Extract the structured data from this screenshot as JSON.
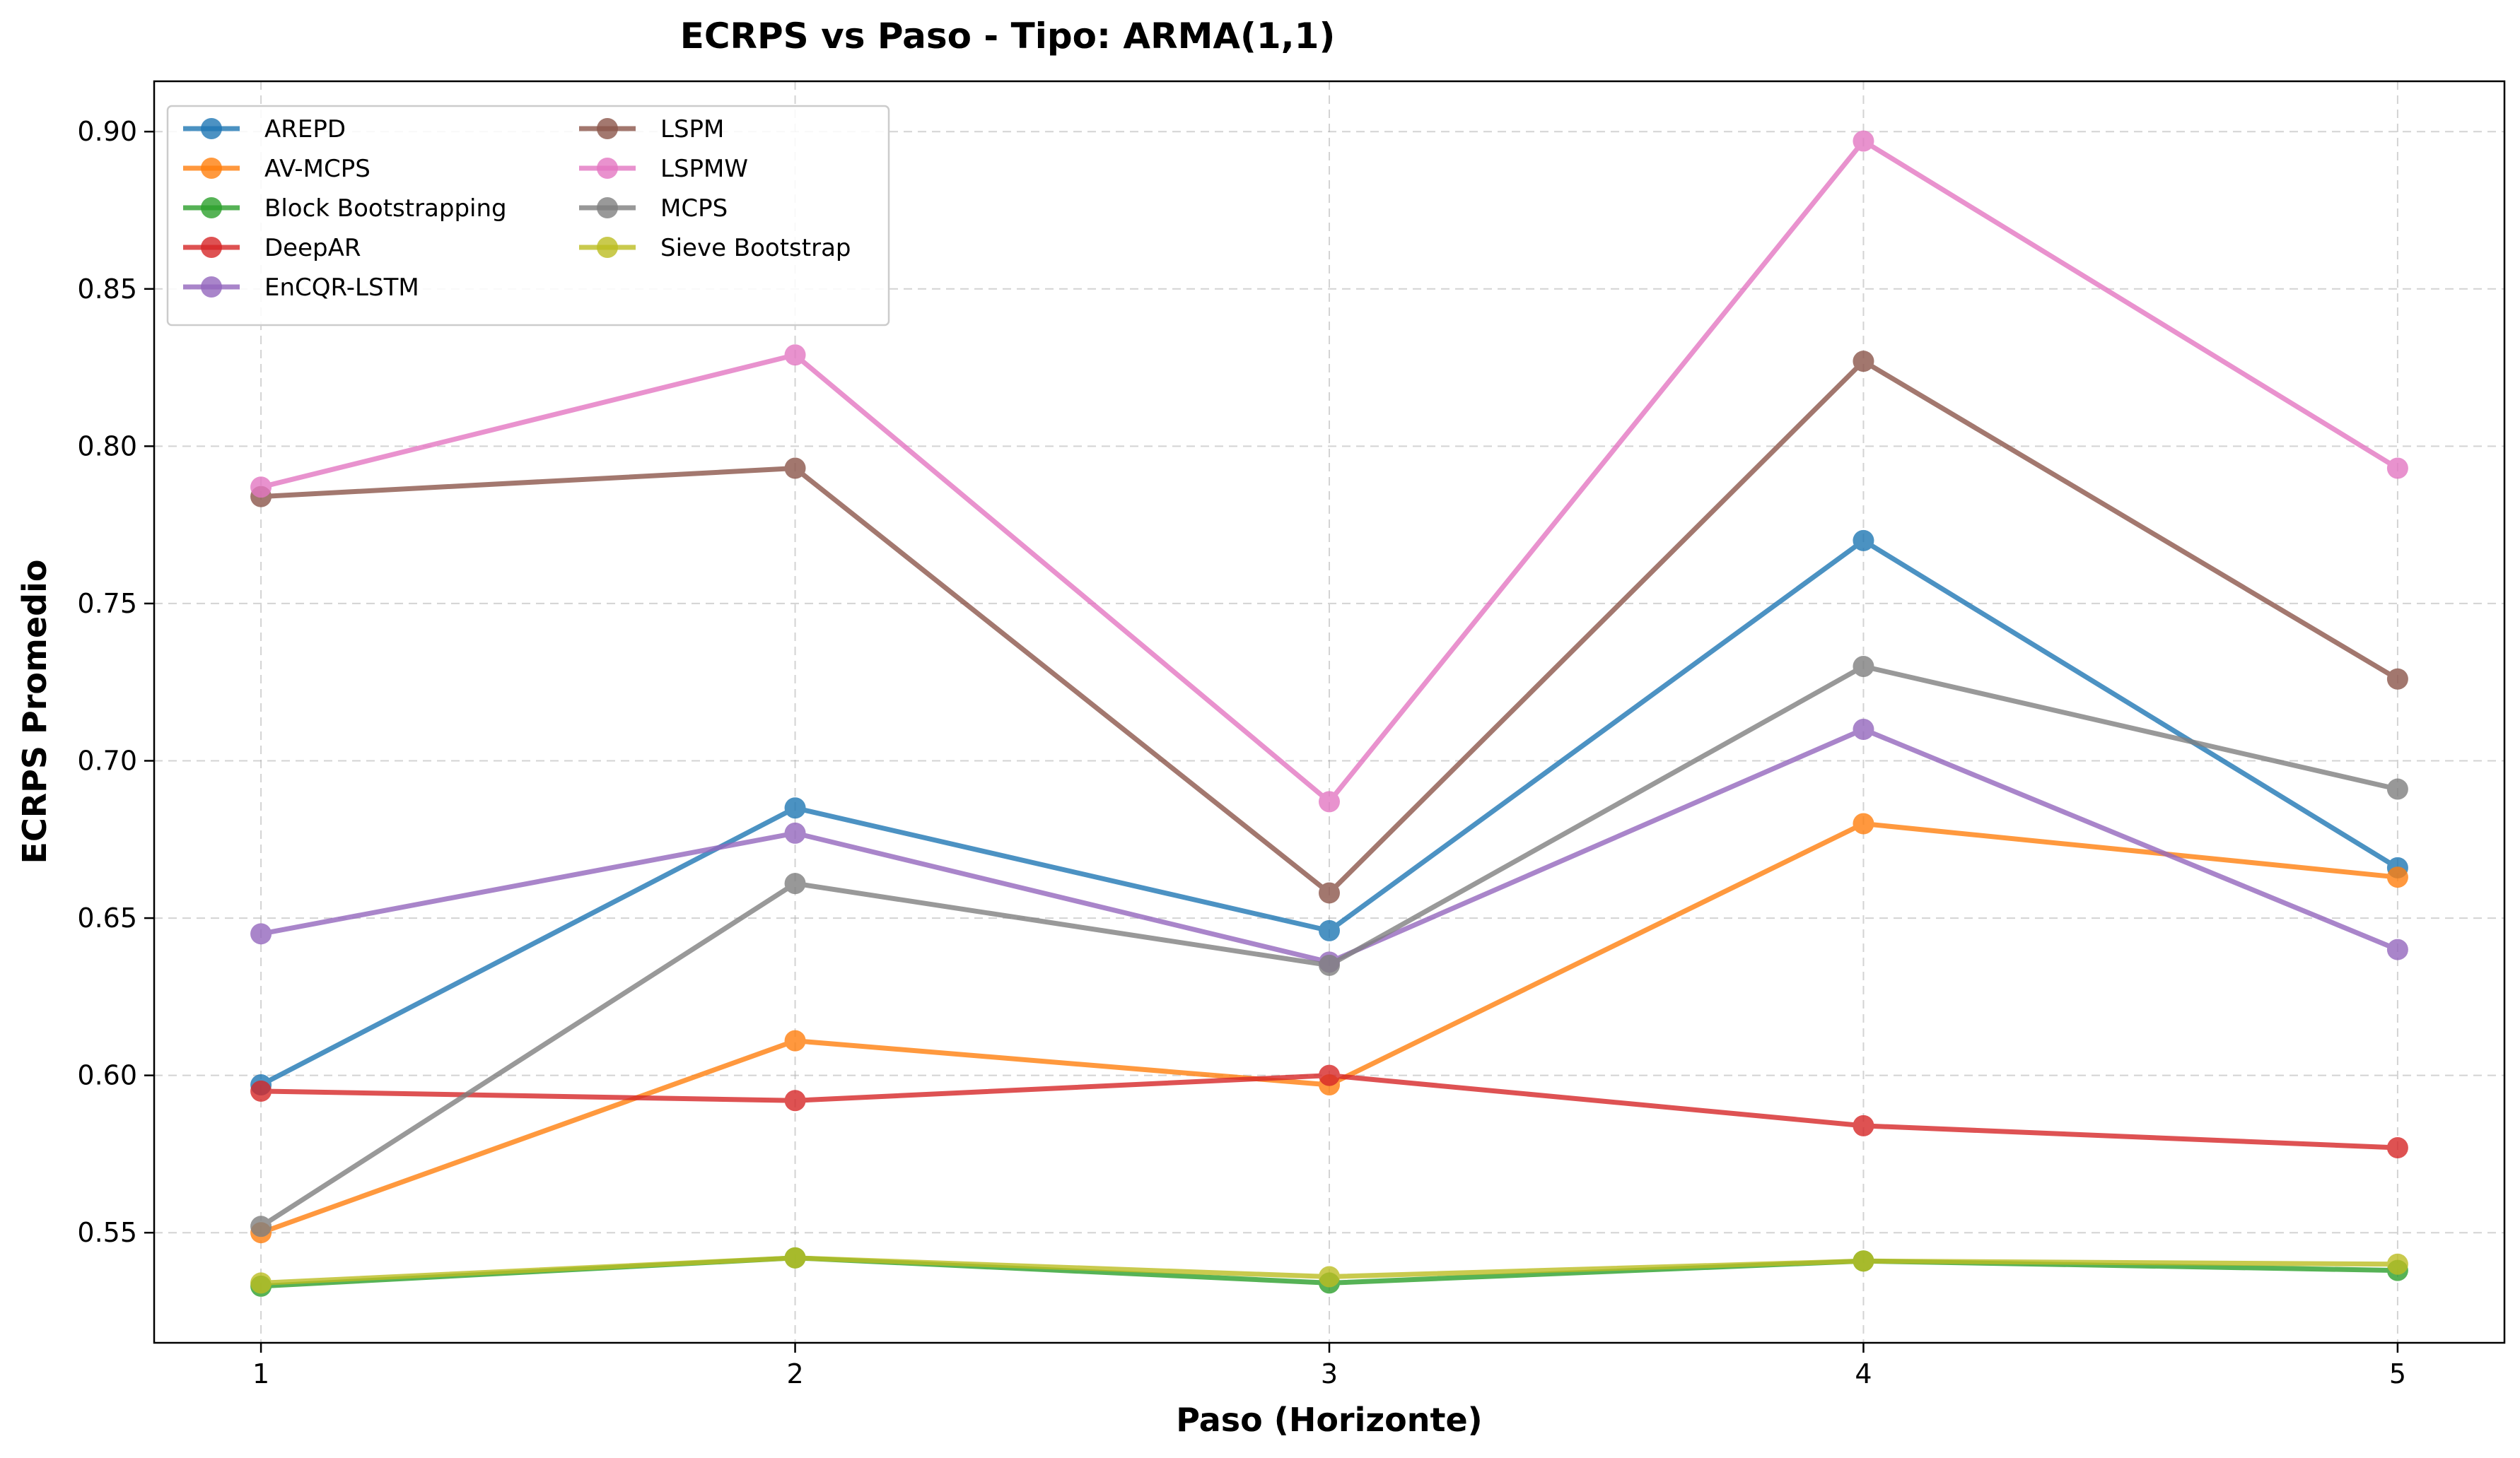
{
  "chart_data": {
    "type": "line",
    "title": "ECRPS vs Paso - Tipo: ARMA(1,1)",
    "xlabel": "Paso (Horizonte)",
    "ylabel": "ECRPS Promedio",
    "x": [
      1,
      2,
      3,
      4,
      5
    ],
    "x_ticks": [
      "1",
      "2",
      "3",
      "4",
      "5"
    ],
    "xlim": [
      0.8,
      5.2
    ],
    "ylim": [
      0.515,
      0.916
    ],
    "y_ticks": [
      0.55,
      0.6,
      0.65,
      0.7,
      0.75,
      0.8,
      0.85,
      0.9
    ],
    "y_tick_labels": [
      "0.55",
      "0.60",
      "0.65",
      "0.70",
      "0.75",
      "0.80",
      "0.85",
      "0.90"
    ],
    "grid": true,
    "legend_position": "top-left",
    "legend_columns": 2,
    "series": [
      {
        "name": "AREPD",
        "color": "#1f77b4",
        "values": [
          0.597,
          0.685,
          0.646,
          0.77,
          0.666
        ]
      },
      {
        "name": "AV-MCPS",
        "color": "#ff7f0e",
        "values": [
          0.55,
          0.611,
          0.597,
          0.68,
          0.663
        ]
      },
      {
        "name": "Block Bootstrapping",
        "color": "#2ca02c",
        "values": [
          0.533,
          0.542,
          0.534,
          0.541,
          0.538
        ]
      },
      {
        "name": "DeepAR",
        "color": "#d62728",
        "values": [
          0.595,
          0.592,
          0.6,
          0.584,
          0.577
        ]
      },
      {
        "name": "EnCQR-LSTM",
        "color": "#9467bd",
        "values": [
          0.645,
          0.677,
          0.636,
          0.71,
          0.64
        ]
      },
      {
        "name": "LSPM",
        "color": "#8c564b",
        "values": [
          0.784,
          0.793,
          0.658,
          0.827,
          0.726
        ]
      },
      {
        "name": "LSPMW",
        "color": "#e377c2",
        "values": [
          0.787,
          0.829,
          0.687,
          0.897,
          0.793
        ]
      },
      {
        "name": "MCPS",
        "color": "#7f7f7f",
        "values": [
          0.552,
          0.661,
          0.635,
          0.73,
          0.691
        ]
      },
      {
        "name": "Sieve Bootstrap",
        "color": "#bcbd22",
        "values": [
          0.534,
          0.542,
          0.536,
          0.541,
          0.54
        ]
      }
    ]
  }
}
